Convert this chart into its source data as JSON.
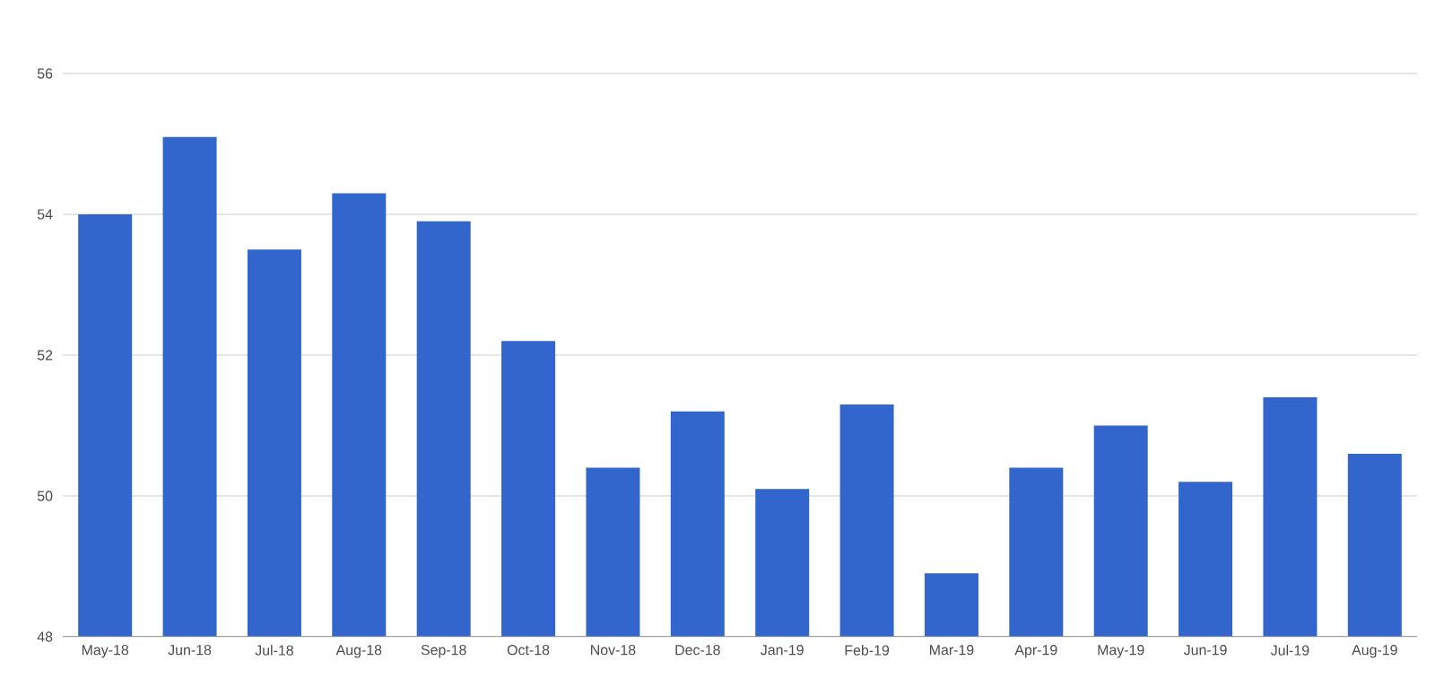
{
  "chart_data": {
    "type": "bar",
    "categories": [
      "May-18",
      "Jun-18",
      "Jul-18",
      "Aug-18",
      "Sep-18",
      "Oct-18",
      "Nov-18",
      "Dec-18",
      "Jan-19",
      "Feb-19",
      "Mar-19",
      "Apr-19",
      "May-19",
      "Jun-19",
      "Jul-19",
      "Aug-19"
    ],
    "values": [
      54.0,
      55.1,
      53.5,
      54.3,
      53.9,
      52.2,
      50.4,
      51.2,
      50.1,
      51.3,
      48.9,
      50.4,
      51.0,
      50.2,
      51.4,
      50.6
    ],
    "color": "#3366cc",
    "ylim": [
      48,
      56
    ],
    "yticks": [
      48,
      50,
      52,
      54,
      56
    ],
    "grid": "y"
  }
}
